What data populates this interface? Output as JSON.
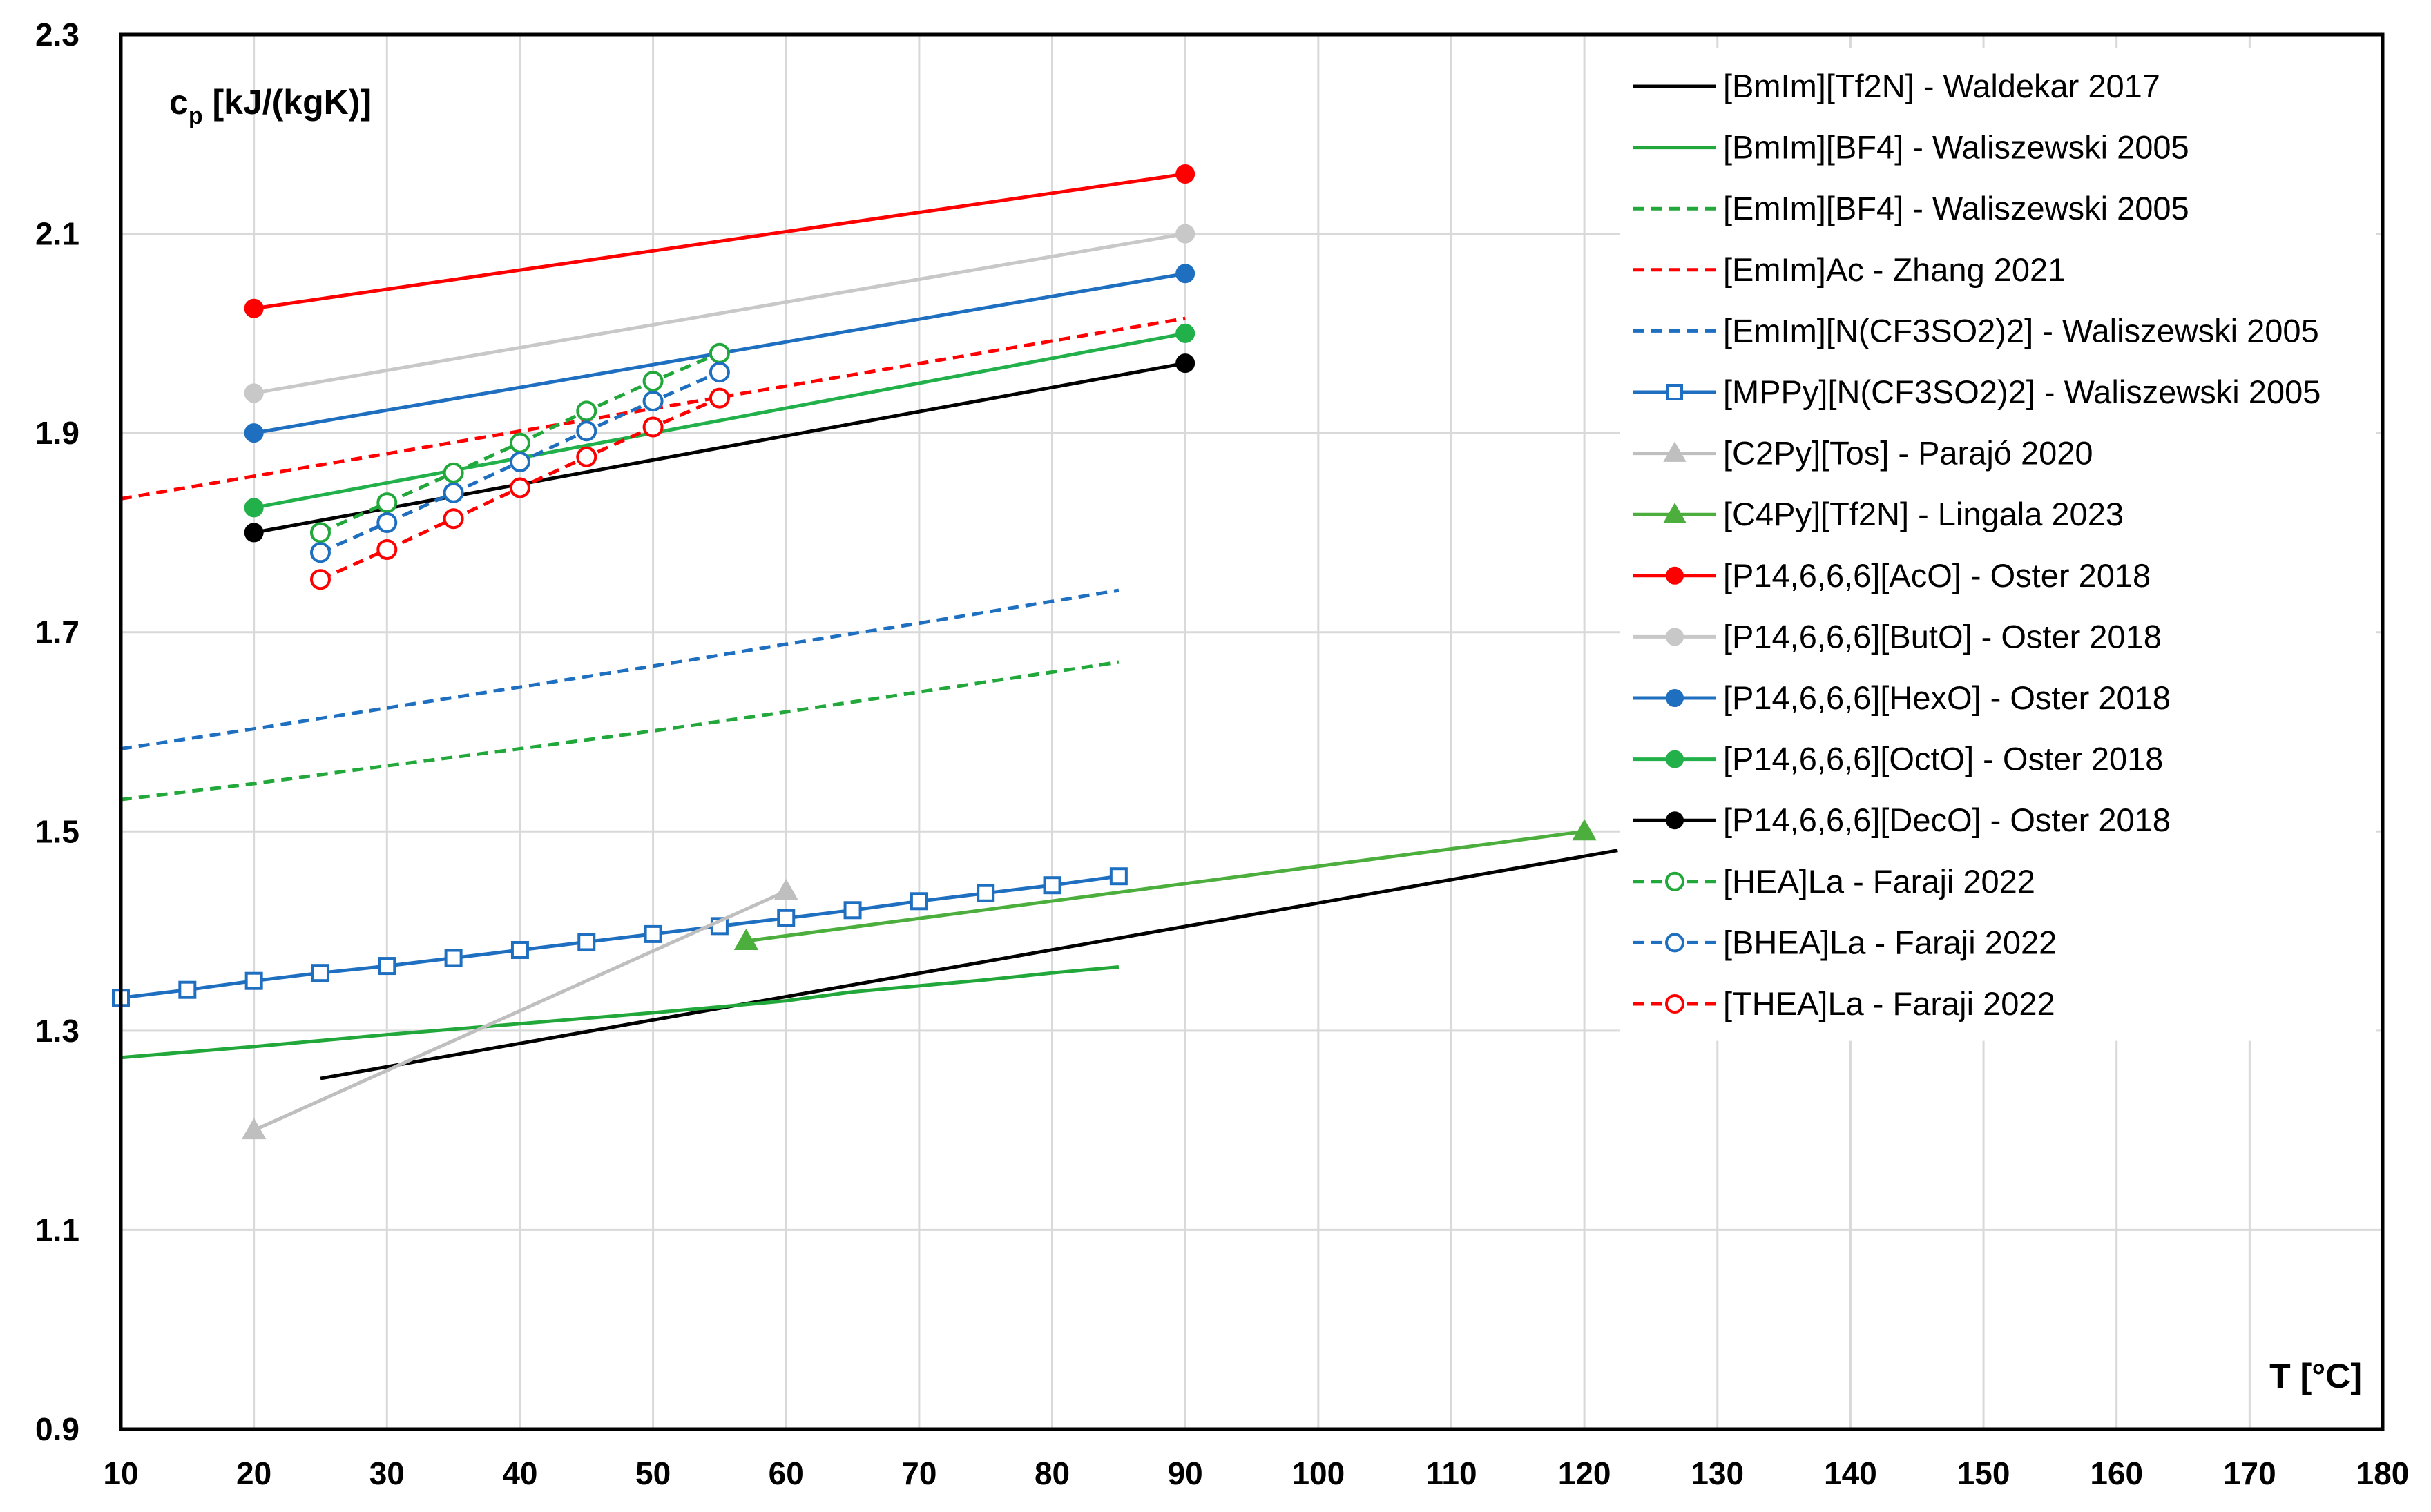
{
  "chart_data": {
    "type": "line",
    "title": "",
    "ylabel_main": "c",
    "ylabel_sub": "p",
    "ylabel_rest": " [kJ/(kgK)]",
    "xlabel": "T [°C]",
    "xlim": [
      10,
      180
    ],
    "ylim": [
      0.9,
      2.3
    ],
    "x_ticks": [
      10,
      20,
      30,
      40,
      50,
      60,
      70,
      80,
      90,
      100,
      110,
      120,
      130,
      140,
      150,
      160,
      170,
      180
    ],
    "x_tick_labels": [
      "10",
      "20",
      "30",
      "40",
      "50",
      "60",
      "70",
      "80",
      "90",
      "100",
      "110",
      "120",
      "130",
      "140",
      "150",
      "160",
      "170",
      "180"
    ],
    "y_ticks": [
      0.9,
      1.1,
      1.3,
      1.5,
      1.7,
      1.9,
      2.1,
      2.3
    ],
    "y_tick_labels": [
      "0.9",
      "1.1",
      "1.3",
      "1.5",
      "1.7",
      "1.9",
      "2.1",
      "2.3"
    ],
    "grid": true,
    "legend_position": "top-right",
    "series": [
      {
        "name": "[BmIm][Tf2N] - Waldekar 2017",
        "color": "#000000",
        "dash": "solid",
        "marker": "none",
        "x": [
          25,
          122.5
        ],
        "y": [
          1.252,
          1.481
        ]
      },
      {
        "name": "[BmIm][BF4] - Waliszewski 2005",
        "color": "#22a83a",
        "dash": "solid",
        "marker": "none",
        "x": [
          10,
          20,
          30,
          40,
          50,
          60,
          65,
          70,
          75,
          80,
          85
        ],
        "y": [
          1.273,
          1.284,
          1.296,
          1.307,
          1.318,
          1.33,
          1.339,
          1.345,
          1.351,
          1.358,
          1.364
        ]
      },
      {
        "name": "[EmIm][BF4] - Waliszewski 2005",
        "color": "#22a83a",
        "dash": "dashed",
        "marker": "none",
        "x": [
          10,
          20,
          30,
          40,
          50,
          60,
          70,
          85
        ],
        "y": [
          1.532,
          1.548,
          1.566,
          1.583,
          1.601,
          1.62,
          1.64,
          1.67
        ]
      },
      {
        "name": "[EmIm]Ac - Zhang 2021",
        "color": "#ff0000",
        "dash": "dashed",
        "marker": "none",
        "x": [
          10,
          90
        ],
        "y": [
          1.834,
          2.015
        ]
      },
      {
        "name": "[EmIm][N(CF3SO2)2] - Waliszewski 2005",
        "color": "#1f6fc0",
        "dash": "dashed",
        "marker": "none",
        "x": [
          10,
          20,
          30,
          40,
          50,
          60,
          70,
          85
        ],
        "y": [
          1.583,
          1.603,
          1.624,
          1.645,
          1.666,
          1.688,
          1.709,
          1.742
        ]
      },
      {
        "name": "[MPPy][N(CF3SO2)2] - Waliszewski 2005",
        "color": "#1f6fc0",
        "dash": "solid",
        "marker": "open-square",
        "x": [
          10,
          15,
          20,
          25,
          30,
          35,
          40,
          45,
          50,
          55,
          60,
          65,
          70,
          75,
          80,
          85
        ],
        "y": [
          1.333,
          1.341,
          1.35,
          1.358,
          1.365,
          1.373,
          1.381,
          1.389,
          1.397,
          1.405,
          1.413,
          1.421,
          1.43,
          1.438,
          1.446,
          1.455
        ]
      },
      {
        "name": "[C2Py][Tos] - Parajó 2020",
        "color": "#bfbfbf",
        "dash": "solid",
        "marker": "filled-triangle",
        "x": [
          20,
          60
        ],
        "y": [
          1.2,
          1.44
        ]
      },
      {
        "name": "[C4Py][Tf2N] - Lingala 2023",
        "color": "#4cae3c",
        "dash": "solid",
        "marker": "filled-triangle",
        "x": [
          57,
          120
        ],
        "y": [
          1.39,
          1.5
        ]
      },
      {
        "name": "[P14,6,6,6][AcO] - Oster 2018",
        "color": "#ff0000",
        "dash": "solid",
        "marker": "filled-circle",
        "x": [
          20,
          90
        ],
        "y": [
          2.025,
          2.16
        ]
      },
      {
        "name": "[P14,6,6,6][ButO] - Oster 2018",
        "color": "#c8c8c8",
        "dash": "solid",
        "marker": "filled-circle",
        "x": [
          20,
          90
        ],
        "y": [
          1.94,
          2.1
        ]
      },
      {
        "name": "[P14,6,6,6][HexO] - Oster 2018",
        "color": "#1f6fc0",
        "dash": "solid",
        "marker": "filled-circle",
        "x": [
          20,
          90
        ],
        "y": [
          1.9,
          2.06
        ]
      },
      {
        "name": "[P14,6,6,6][OctO] - Oster 2018",
        "color": "#22b04a",
        "dash": "solid",
        "marker": "filled-circle",
        "x": [
          20,
          90
        ],
        "y": [
          1.825,
          2.0
        ]
      },
      {
        "name": "[P14,6,6,6][DecO] - Oster 2018",
        "color": "#000000",
        "dash": "solid",
        "marker": "filled-circle",
        "x": [
          20,
          90
        ],
        "y": [
          1.8,
          1.97
        ]
      },
      {
        "name": "[HEA]La - Faraji 2022",
        "color": "#22a83a",
        "dash": "dashed",
        "marker": "open-circle",
        "x": [
          25,
          30,
          35,
          40,
          45,
          50,
          55
        ],
        "y": [
          1.8,
          1.83,
          1.86,
          1.89,
          1.922,
          1.952,
          1.98
        ]
      },
      {
        "name": "[BHEA]La - Faraji 2022",
        "color": "#1f6fc0",
        "dash": "dashed",
        "marker": "open-circle",
        "x": [
          25,
          30,
          35,
          40,
          45,
          50,
          55
        ],
        "y": [
          1.78,
          1.81,
          1.84,
          1.871,
          1.902,
          1.932,
          1.961
        ]
      },
      {
        "name": "[THEA]La - Faraji 2022",
        "color": "#ff0000",
        "dash": "dashed",
        "marker": "open-circle",
        "x": [
          25,
          30,
          35,
          40,
          45,
          50,
          55
        ],
        "y": [
          1.753,
          1.783,
          1.814,
          1.845,
          1.876,
          1.906,
          1.935
        ]
      }
    ]
  }
}
